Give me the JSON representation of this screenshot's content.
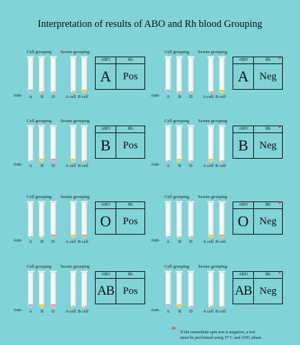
{
  "title": "Interpretation of results of ABO and Rh blood Grouping",
  "headers": {
    "cell_grouping": "Cell grouping",
    "serum_grouping": "Serum grouping",
    "abo": "ABO",
    "rh": "Rh",
    "anti": "Anti-"
  },
  "tube_labels": {
    "cell": [
      "A",
      "B",
      "D"
    ],
    "serum": [
      "A cell",
      "B cell"
    ]
  },
  "colors": {
    "background": "#80d3d6",
    "asterisk": "#e8313a",
    "pellet_blue": "#9bb6e6",
    "pellet_orange": "#f2a35a",
    "pellet_pink": "#ef98a6",
    "pellet_yellow": "#f4cd2d"
  },
  "panels": [
    {
      "abo": "A",
      "rh": "Pos",
      "asterisk": false
    },
    {
      "abo": "A",
      "rh": "Neg",
      "asterisk": true
    },
    {
      "abo": "B",
      "rh": "Pos",
      "asterisk": false
    },
    {
      "abo": "B",
      "rh": "Neg",
      "asterisk": true
    },
    {
      "abo": "O",
      "rh": "Pos",
      "asterisk": false
    },
    {
      "abo": "O",
      "rh": "Neg",
      "asterisk": true
    },
    {
      "abo": "AB",
      "rh": "Pos",
      "asterisk": false
    },
    {
      "abo": "AB",
      "rh": "Neg",
      "asterisk": true
    }
  ],
  "footnote": {
    "symbol": "*",
    "line1": "If the immediate spin test is negative, a test",
    "line2": "must be performed using 37 C and AHG phase"
  }
}
